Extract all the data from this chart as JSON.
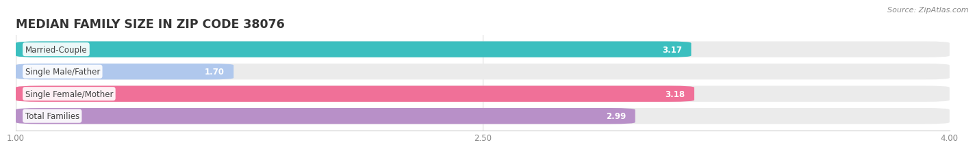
{
  "title": "MEDIAN FAMILY SIZE IN ZIP CODE 38076",
  "source": "Source: ZipAtlas.com",
  "categories": [
    "Married-Couple",
    "Single Male/Father",
    "Single Female/Mother",
    "Total Families"
  ],
  "values": [
    3.17,
    1.7,
    3.18,
    2.99
  ],
  "bar_colors": [
    "#3bbfbf",
    "#b0c8ed",
    "#f07098",
    "#b890c8"
  ],
  "bar_bg_color": "#ebebeb",
  "xlim": [
    1.0,
    4.0
  ],
  "xticks": [
    1.0,
    2.5,
    4.0
  ],
  "bar_height": 0.72,
  "background_color": "#ffffff",
  "title_fontsize": 12.5,
  "label_fontsize": 8.5,
  "value_fontsize": 8.5,
  "source_fontsize": 8
}
